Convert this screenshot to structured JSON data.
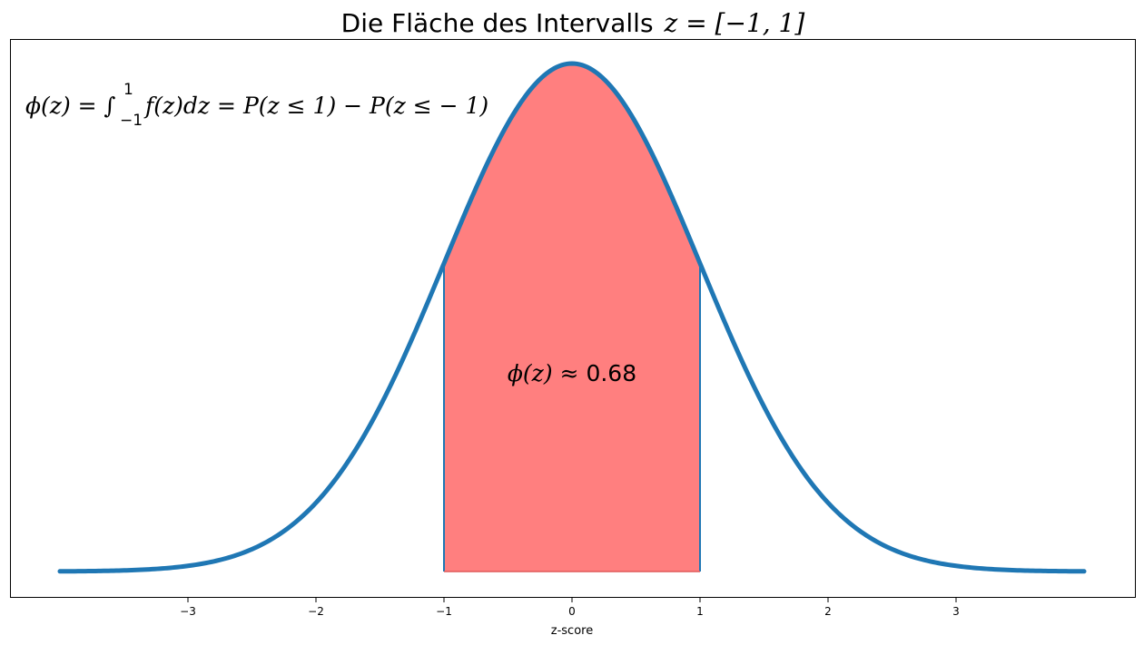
{
  "chart_data": {
    "type": "area",
    "title_text": "Die Fläche des Intervalls",
    "title_math": "z = [−1, 1]",
    "xlabel": "z-score",
    "ylabel": "",
    "xlim": [
      -4.0,
      4.0
    ],
    "ylim": [
      0,
      0.4
    ],
    "xticks": [
      -3,
      -2,
      -1,
      0,
      1,
      2,
      3
    ],
    "xtick_labels": [
      "−3",
      "−2",
      "−1",
      "0",
      "1",
      "2",
      "3"
    ],
    "yticks_shown": false,
    "grid": false,
    "series": [
      {
        "kind": "line",
        "function": "standard normal pdf",
        "x": [
          -4,
          -3.5,
          -3,
          -2.5,
          -2,
          -1.5,
          -1,
          -0.5,
          0,
          0.5,
          1,
          1.5,
          2,
          2.5,
          3,
          3.5,
          4
        ],
        "y": [
          0.0001,
          0.0009,
          0.0044,
          0.0175,
          0.054,
          0.1295,
          0.242,
          0.3521,
          0.3989,
          0.3521,
          0.242,
          0.1295,
          0.054,
          0.0175,
          0.0044,
          0.0009,
          0.0001
        ],
        "color": "#1f77b4"
      },
      {
        "kind": "fill",
        "from": -1,
        "to": 1,
        "color": "#ff7f7f"
      }
    ],
    "annotations": {
      "formula_lhs": "ϕ(z) = ∫",
      "formula_upper": "1",
      "formula_lower": "−1",
      "formula_rhs": "f(z)dz = P(z ≤ 1) − P(z ≤ − 1)",
      "area_label_math": "ϕ(z) ≈ ",
      "area_label_value": "0.68"
    }
  }
}
